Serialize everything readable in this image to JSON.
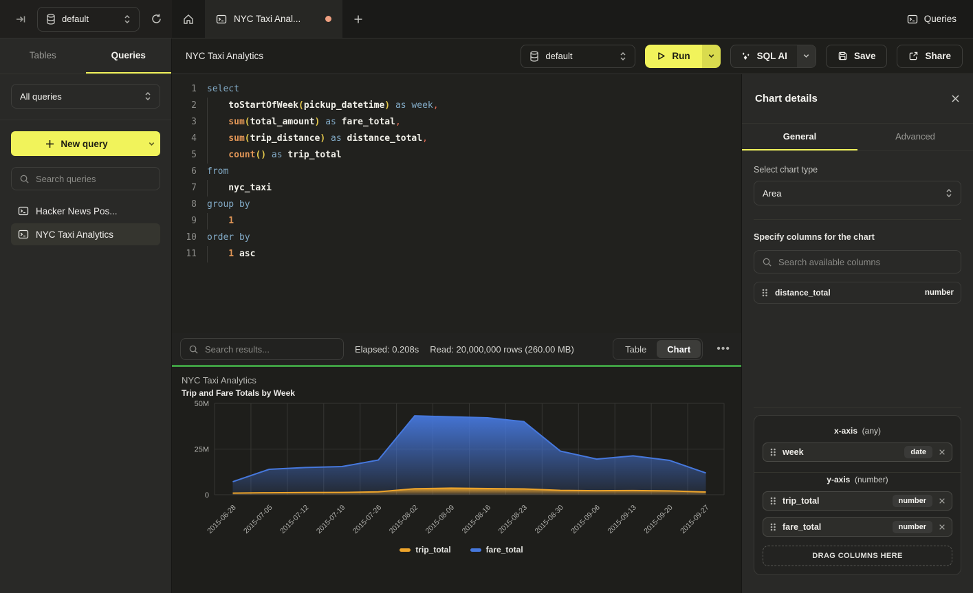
{
  "topbar": {
    "database": "default",
    "tab_title": "NYC Taxi Anal...",
    "tab_unsaved": true,
    "queries_label": "Queries"
  },
  "sidebar": {
    "tabs": [
      {
        "label": "Tables",
        "active": false
      },
      {
        "label": "Queries",
        "active": true
      }
    ],
    "filter_value": "All queries",
    "new_query_label": "New query",
    "search_placeholder": "Search queries",
    "items": [
      {
        "label": "Hacker News Pos...",
        "active": false
      },
      {
        "label": "NYC Taxi Analytics",
        "active": true
      }
    ]
  },
  "toolbar": {
    "title": "NYC Taxi Analytics",
    "database": "default",
    "run_label": "Run",
    "sql_ai_label": "SQL AI",
    "save_label": "Save",
    "share_label": "Share"
  },
  "editor": {
    "lines": [
      {
        "n": 1,
        "indent": false,
        "tokens": [
          [
            "select",
            "kw"
          ]
        ]
      },
      {
        "n": 2,
        "indent": true,
        "tokens": [
          [
            "toStartOfWeek",
            "fnw"
          ],
          [
            "(",
            "par"
          ],
          [
            "pickup_datetime",
            "id"
          ],
          [
            ")",
            "par"
          ],
          [
            " ",
            "id"
          ],
          [
            "as",
            "kw"
          ],
          [
            " ",
            "id"
          ],
          [
            "week",
            "kw"
          ],
          [
            ",",
            "comma"
          ]
        ]
      },
      {
        "n": 3,
        "indent": true,
        "tokens": [
          [
            "sum",
            "fn"
          ],
          [
            "(",
            "par"
          ],
          [
            "total_amount",
            "id"
          ],
          [
            ")",
            "par"
          ],
          [
            " ",
            "id"
          ],
          [
            "as",
            "kw"
          ],
          [
            " ",
            "id"
          ],
          [
            "fare_total",
            "id"
          ],
          [
            ",",
            "comma"
          ]
        ]
      },
      {
        "n": 4,
        "indent": true,
        "tokens": [
          [
            "sum",
            "fn"
          ],
          [
            "(",
            "par"
          ],
          [
            "trip_distance",
            "id"
          ],
          [
            ")",
            "par"
          ],
          [
            " ",
            "id"
          ],
          [
            "as",
            "kw"
          ],
          [
            " ",
            "id"
          ],
          [
            "distance_total",
            "id"
          ],
          [
            ",",
            "comma"
          ]
        ]
      },
      {
        "n": 5,
        "indent": true,
        "tokens": [
          [
            "count",
            "fn"
          ],
          [
            "(",
            "par"
          ],
          [
            ")",
            "par"
          ],
          [
            " ",
            "id"
          ],
          [
            "as",
            "kw"
          ],
          [
            " ",
            "id"
          ],
          [
            "trip_total",
            "id"
          ]
        ]
      },
      {
        "n": 6,
        "indent": false,
        "tokens": [
          [
            "from",
            "kw"
          ]
        ]
      },
      {
        "n": 7,
        "indent": true,
        "tokens": [
          [
            "nyc_taxi",
            "id"
          ]
        ]
      },
      {
        "n": 8,
        "indent": false,
        "tokens": [
          [
            "group by",
            "kw"
          ]
        ]
      },
      {
        "n": 9,
        "indent": true,
        "tokens": [
          [
            "1",
            "num"
          ]
        ]
      },
      {
        "n": 10,
        "indent": false,
        "tokens": [
          [
            "order by",
            "kw"
          ]
        ]
      },
      {
        "n": 11,
        "indent": true,
        "tokens": [
          [
            "1",
            "num"
          ],
          [
            " ",
            "id"
          ],
          [
            "asc",
            "id"
          ]
        ]
      }
    ]
  },
  "results_bar": {
    "search_placeholder": "Search results...",
    "elapsed": "Elapsed: 0.208s",
    "read": "Read: 20,000,000 rows (260.00 MB)",
    "views": [
      "Table",
      "Chart"
    ],
    "active_view": "Chart",
    "more_label": "..."
  },
  "chart_data": {
    "type": "area",
    "title": "NYC Taxi Analytics",
    "subtitle": "Trip and Fare Totals by Week",
    "x": [
      "2015-06-28",
      "2015-07-05",
      "2015-07-12",
      "2015-07-19",
      "2015-07-26",
      "2015-08-02",
      "2015-08-09",
      "2015-08-16",
      "2015-08-23",
      "2015-08-30",
      "2015-09-06",
      "2015-09-13",
      "2015-09-20",
      "2015-09-27"
    ],
    "series": [
      {
        "name": "trip_total",
        "color": "#eda42b",
        "values": [
          900000,
          1100000,
          1200000,
          1250000,
          1600000,
          3300000,
          3600000,
          3400000,
          3200000,
          2400000,
          2200000,
          2300000,
          2100000,
          1500000
        ]
      },
      {
        "name": "fare_total",
        "color": "#4678dd",
        "values": [
          7100000,
          13900000,
          14900000,
          15400000,
          19000000,
          43200000,
          42600000,
          42100000,
          40000000,
          23900000,
          19500000,
          21300000,
          18800000,
          11900000
        ]
      }
    ],
    "draw_order": [
      "fare_total",
      "trip_total"
    ],
    "ylim": [
      0,
      50000000
    ],
    "yticks": [
      {
        "label": "0",
        "value": 0
      },
      {
        "label": "25M",
        "value": 25000000
      },
      {
        "label": "50M",
        "value": 50000000
      }
    ],
    "grid": true,
    "legend_position": "bottom"
  },
  "details_panel": {
    "title": "Chart details",
    "tabs": [
      {
        "label": "General",
        "active": true
      },
      {
        "label": "Advanced",
        "active": false
      }
    ],
    "chart_type_label": "Select chart type",
    "chart_type_value": "Area",
    "columns_label": "Specify columns for the chart",
    "search_placeholder": "Search available columns",
    "available_columns": [
      {
        "name": "distance_total",
        "type": "number"
      }
    ],
    "x_axis": {
      "label": "x-axis",
      "hint": "(any)",
      "columns": [
        {
          "name": "week",
          "type": "date"
        }
      ]
    },
    "y_axis": {
      "label": "y-axis",
      "hint": "(number)",
      "columns": [
        {
          "name": "trip_total",
          "type": "number"
        },
        {
          "name": "fare_total",
          "type": "number"
        }
      ]
    },
    "drop_zone_label": "DRAG COLUMNS HERE"
  },
  "colors": {
    "accent_yellow": "#f1f35b",
    "run_chevron_yellow": "#d9db4e",
    "success_green": "#3f9e43",
    "unsaved_dot_orange": "#efa081",
    "series_trip_total": "#eda42b",
    "series_fare_total": "#4678dd",
    "panel_bg": "#292927",
    "editor_bg": "#21211e"
  },
  "icons": {
    "collapse-sidebar": "⇥",
    "database": "cylinder",
    "refresh": "↻",
    "home": "⌂",
    "terminal": ">_",
    "plus": "+",
    "play": "▷",
    "chevron-down": "⌄",
    "chevron-updown": "⇕",
    "sparkles": "✦",
    "save": "floppy",
    "share": "↗",
    "search": "⌕",
    "close": "✕",
    "drag-handle": "⠿",
    "ellipsis": "…"
  }
}
